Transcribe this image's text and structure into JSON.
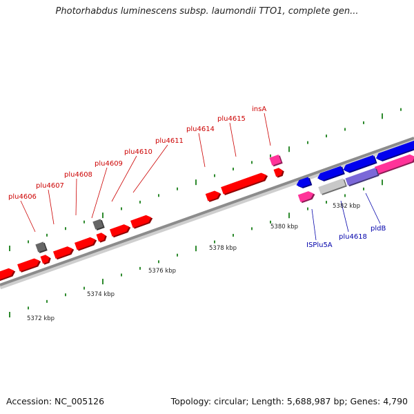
{
  "title": "Photorhabdus luminescens subsp. laumondii TTO1, complete gen...",
  "footer": {
    "accession": "Accession: NC_005126",
    "summary": "Topology: circular; Length: 5,688,987 bp; Genes: 4,790"
  },
  "colors": {
    "backbone": "#8c8c8c",
    "tick": "#2d8a2d",
    "forward_gene": "#ff0000",
    "reverse_gene": "#0000ee",
    "pseudo_gene": "#666666",
    "mobile_element": "#ff3399",
    "misc_feature_grey": "#c8c8c8",
    "misc_feature_purple": "#7b68d8",
    "forward_label": "#cc0000",
    "reverse_label": "#0000aa"
  },
  "scale_labels": [
    {
      "text": "5372 kbp"
    },
    {
      "text": "5374 kbp"
    },
    {
      "text": "5376 kbp"
    },
    {
      "text": "5378 kbp"
    },
    {
      "text": "5380 kbp"
    },
    {
      "text": "5382 kbp"
    }
  ],
  "gene_labels": {
    "forward": [
      "plu4606",
      "plu4607",
      "plu4608",
      "plu4609",
      "plu4610",
      "plu4611",
      "plu4614",
      "plu4615",
      "insA"
    ],
    "reverse": [
      "ISPlu5A",
      "plu4618",
      "pldB"
    ]
  }
}
